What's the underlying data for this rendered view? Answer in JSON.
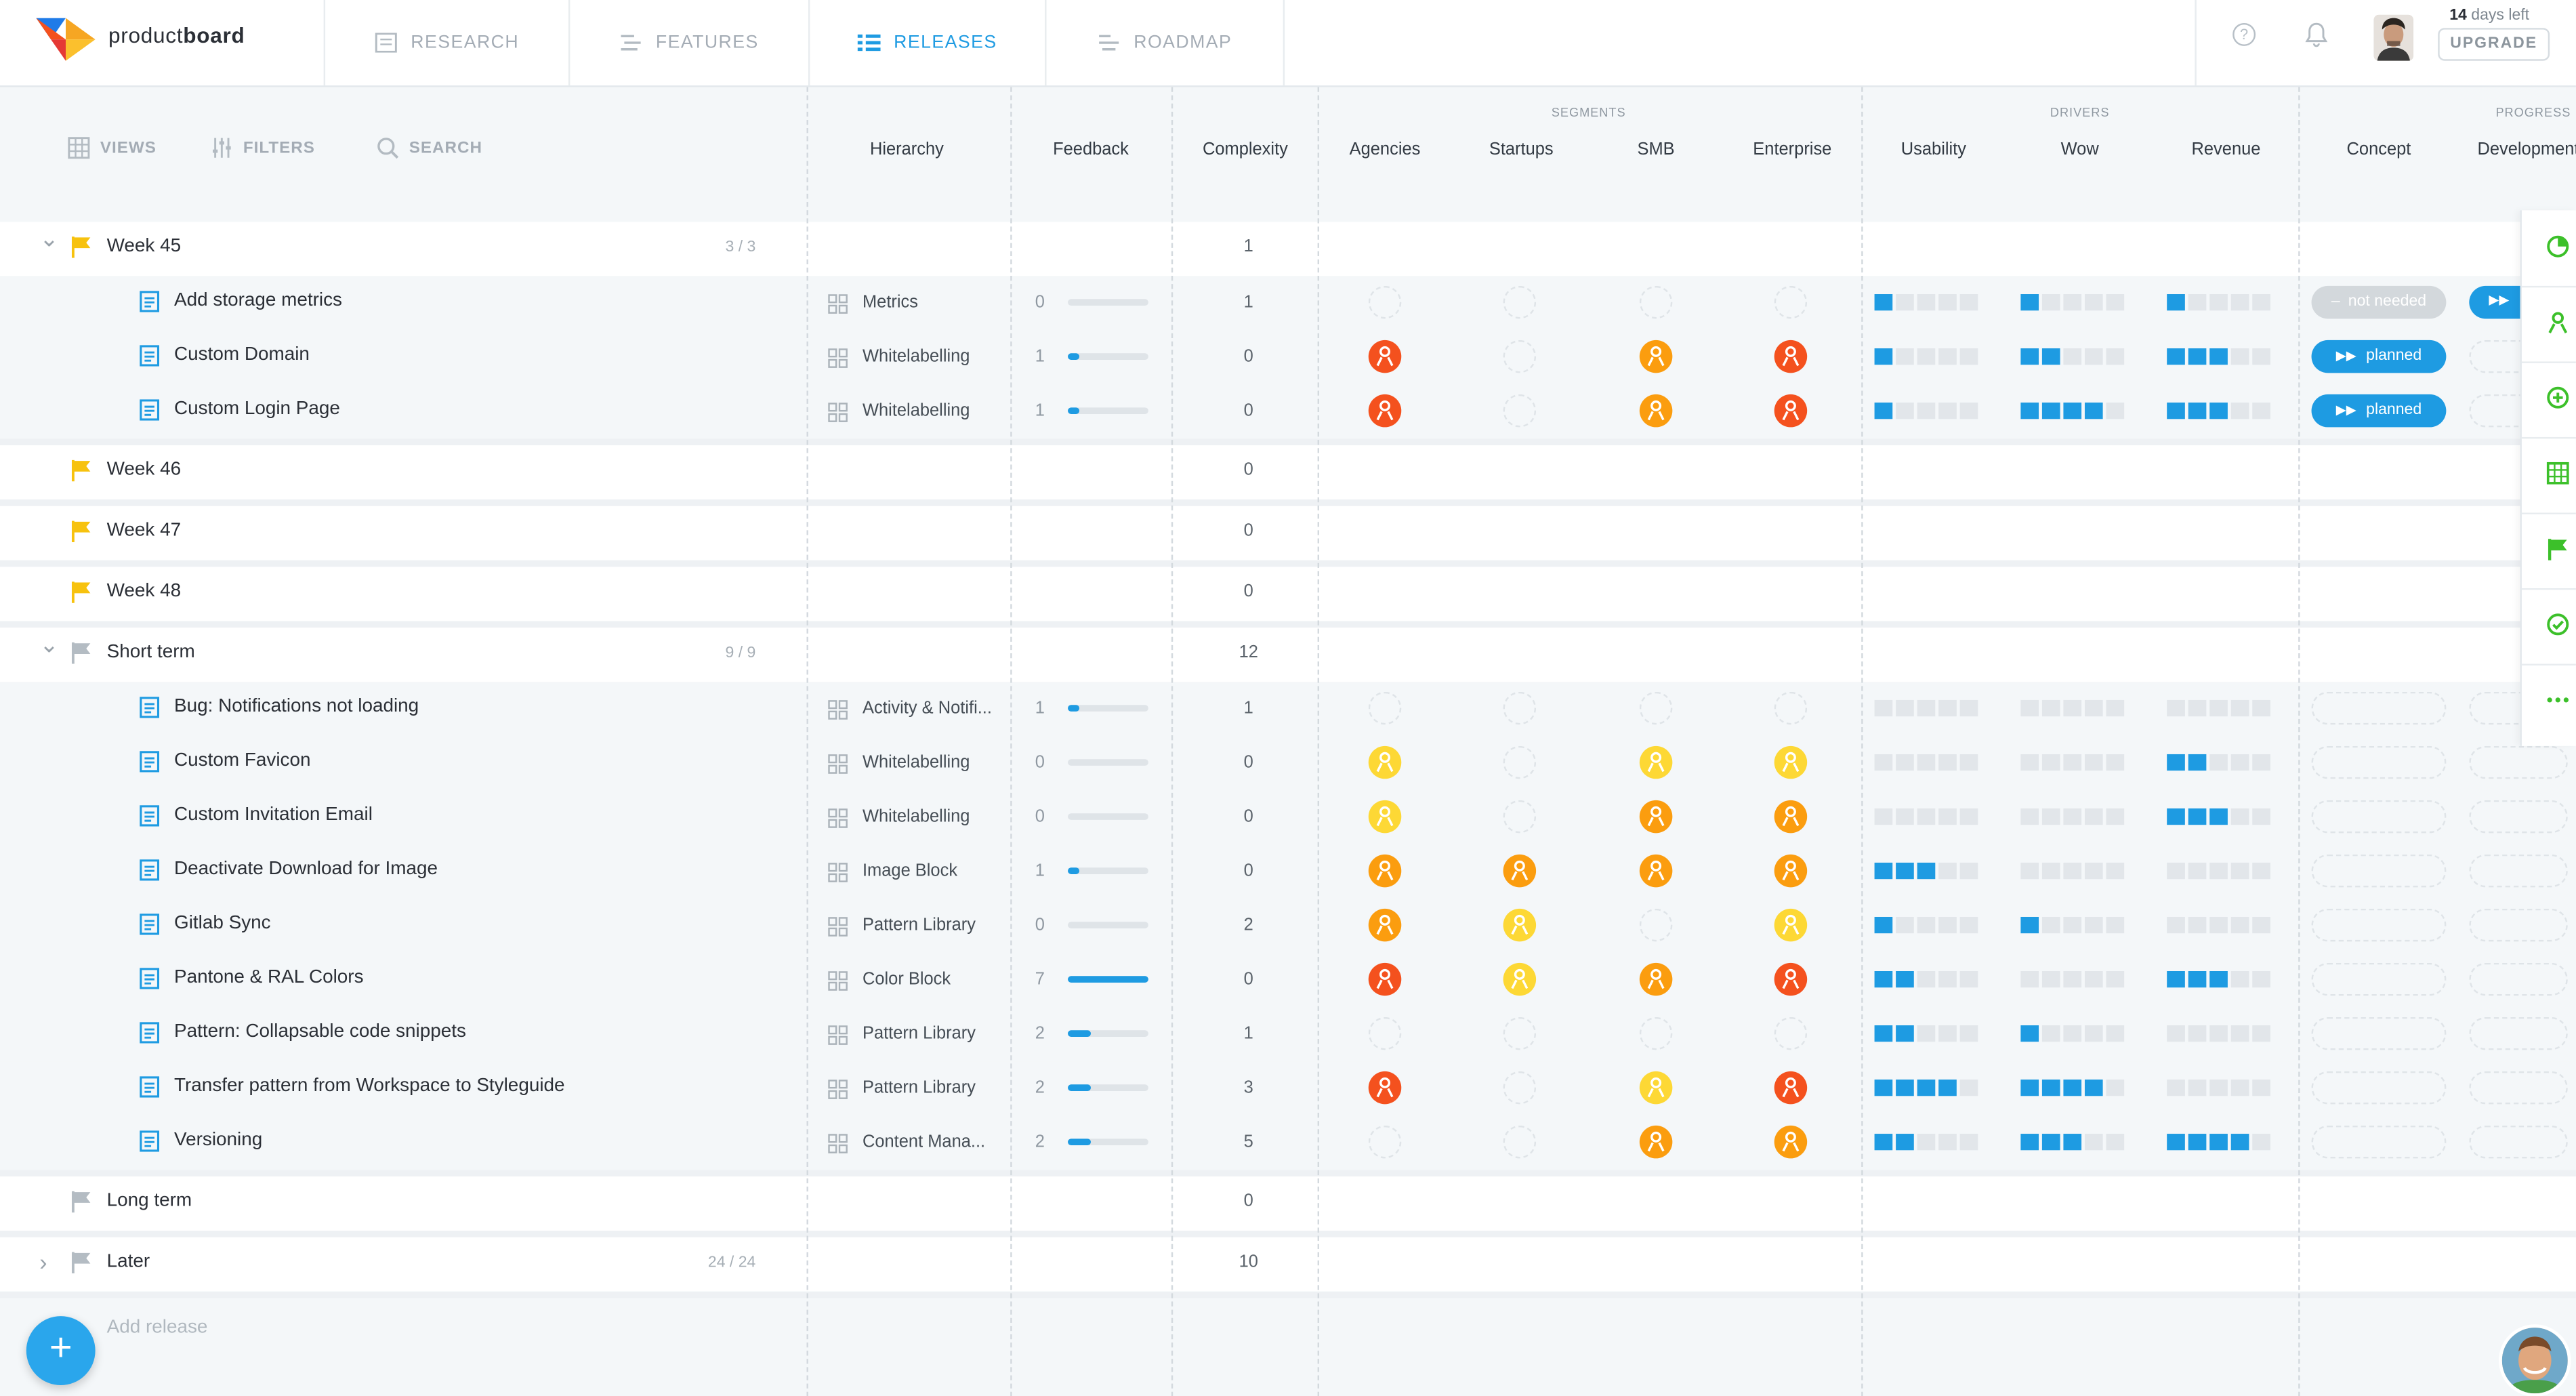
{
  "app": {
    "brand_light": "product",
    "brand_bold": "board"
  },
  "nav": [
    {
      "label": "RESEARCH",
      "icon": "research-icon",
      "active": false
    },
    {
      "label": "FEATURES",
      "icon": "features-icon",
      "active": false
    },
    {
      "label": "RELEASES",
      "icon": "releases-icon",
      "active": true
    },
    {
      "label": "ROADMAP",
      "icon": "roadmap-icon",
      "active": false
    }
  ],
  "trial": {
    "days": "14",
    "suffix": " days left",
    "upgrade": "UPGRADE"
  },
  "toolbar": {
    "views": "VIEWS",
    "filters": "FILTERS",
    "search": "SEARCH"
  },
  "groups": {
    "segments": "SEGMENTS",
    "drivers": "DRIVERS",
    "progress": "PROGRESS"
  },
  "columns": {
    "hierarchy": "Hierarchy",
    "feedback": "Feedback",
    "complexity": "Complexity",
    "agencies": "Agencies",
    "startups": "Startups",
    "smb": "SMB",
    "enterprise": "Enterprise",
    "usability": "Usability",
    "wow": "Wow",
    "revenue": "Revenue",
    "concept": "Concept",
    "development": "Development"
  },
  "colors": {
    "accent": "#1e9be2",
    "red": "#f4511e",
    "orange": "#fb9d0f",
    "yellow": "#fdd835",
    "flag_yellow": "#f7c20e",
    "flag_gray": "#b4bcc3"
  },
  "releases": [
    {
      "name": "Week 45",
      "count": "3 / 3",
      "complexity": "1",
      "expanded": true,
      "flag": "yellow",
      "features": [
        {
          "name": "Add storage metrics",
          "hier": "Metrics",
          "fb": "0",
          "fbv": 0,
          "cx": "1",
          "seg": [
            "e",
            "e",
            "e",
            "e"
          ],
          "drv": [
            1,
            1,
            1
          ],
          "concept": "not needed",
          "dev": "planned"
        },
        {
          "name": "Custom Domain",
          "hier": "Whitelabelling",
          "fb": "1",
          "fbv": 0.14,
          "cx": "0",
          "seg": [
            "r",
            "e",
            "o",
            "r"
          ],
          "drv": [
            1,
            2,
            3
          ],
          "concept": "planned",
          "dev": "blank"
        },
        {
          "name": "Custom Login Page",
          "hier": "Whitelabelling",
          "fb": "1",
          "fbv": 0.14,
          "cx": "0",
          "seg": [
            "r",
            "e",
            "o",
            "r"
          ],
          "drv": [
            1,
            4,
            3
          ],
          "concept": "planned",
          "dev": "blank"
        }
      ]
    },
    {
      "name": "Week 46",
      "count": "",
      "complexity": "0",
      "expanded": false,
      "flag": "yellow",
      "features": []
    },
    {
      "name": "Week 47",
      "count": "",
      "complexity": "0",
      "expanded": false,
      "flag": "yellow",
      "features": []
    },
    {
      "name": "Week 48",
      "count": "",
      "complexity": "0",
      "expanded": false,
      "flag": "yellow",
      "features": []
    },
    {
      "name": "Short term",
      "count": "9 / 9",
      "complexity": "12",
      "expanded": true,
      "flag": "gray",
      "features": [
        {
          "name": "Bug: Notifications not loading",
          "hier": "Activity & Notifi...",
          "fb": "1",
          "fbv": 0.14,
          "cx": "1",
          "seg": [
            "e",
            "e",
            "e",
            "e"
          ],
          "drv": [
            0,
            0,
            0
          ],
          "concept": "blank",
          "dev": "blank"
        },
        {
          "name": "Custom Favicon",
          "hier": "Whitelabelling",
          "fb": "0",
          "fbv": 0,
          "cx": "0",
          "seg": [
            "y",
            "e",
            "y",
            "y"
          ],
          "drv": [
            0,
            0,
            2
          ],
          "concept": "blank",
          "dev": "blank"
        },
        {
          "name": "Custom Invitation Email",
          "hier": "Whitelabelling",
          "fb": "0",
          "fbv": 0,
          "cx": "0",
          "seg": [
            "y",
            "e",
            "o",
            "o"
          ],
          "drv": [
            0,
            0,
            3
          ],
          "concept": "blank",
          "dev": "blank"
        },
        {
          "name": "Deactivate Download for Image",
          "hier": "Image Block",
          "fb": "1",
          "fbv": 0.14,
          "cx": "0",
          "seg": [
            "o",
            "o",
            "o",
            "o"
          ],
          "drv": [
            3,
            0,
            0
          ],
          "concept": "blank",
          "dev": "blank"
        },
        {
          "name": "Gitlab Sync",
          "hier": "Pattern Library",
          "fb": "0",
          "fbv": 0,
          "cx": "2",
          "seg": [
            "o",
            "y",
            "e",
            "y"
          ],
          "drv": [
            1,
            1,
            0
          ],
          "concept": "blank",
          "dev": "blank"
        },
        {
          "name": "Pantone & RAL Colors",
          "hier": "Color Block",
          "fb": "7",
          "fbv": 1,
          "cx": "0",
          "seg": [
            "r",
            "y",
            "o",
            "r"
          ],
          "drv": [
            2,
            0,
            3
          ],
          "concept": "blank",
          "dev": "blank"
        },
        {
          "name": "Pattern: Collapsable code snippets",
          "hier": "Pattern Library",
          "fb": "2",
          "fbv": 0.28,
          "cx": "1",
          "seg": [
            "e",
            "e",
            "e",
            "e"
          ],
          "drv": [
            2,
            1,
            0
          ],
          "concept": "blank",
          "dev": "blank"
        },
        {
          "name": "Transfer pattern from Workspace to Styleguide",
          "hier": "Pattern Library",
          "fb": "2",
          "fbv": 0.28,
          "cx": "3",
          "seg": [
            "r",
            "e",
            "y",
            "r"
          ],
          "drv": [
            4,
            4,
            0
          ],
          "concept": "blank",
          "dev": "blank"
        },
        {
          "name": "Versioning",
          "hier": "Content Mana...",
          "fb": "2",
          "fbv": 0.28,
          "cx": "5",
          "seg": [
            "e",
            "e",
            "o",
            "o"
          ],
          "drv": [
            2,
            3,
            4
          ],
          "concept": "blank",
          "dev": "blank"
        }
      ]
    },
    {
      "name": "Long term",
      "count": "",
      "complexity": "0",
      "expanded": false,
      "flag": "gray",
      "features": []
    },
    {
      "name": "Later",
      "count": "24 / 24",
      "complexity": "10",
      "expanded": false,
      "collapsed_chevron": true,
      "flag": "gray",
      "features": []
    }
  ],
  "add_release": "Add release",
  "rail_icons": [
    "progress-icon",
    "persona-icon",
    "target-icon",
    "table-icon",
    "flag-icon",
    "check-icon",
    "more-icon"
  ]
}
